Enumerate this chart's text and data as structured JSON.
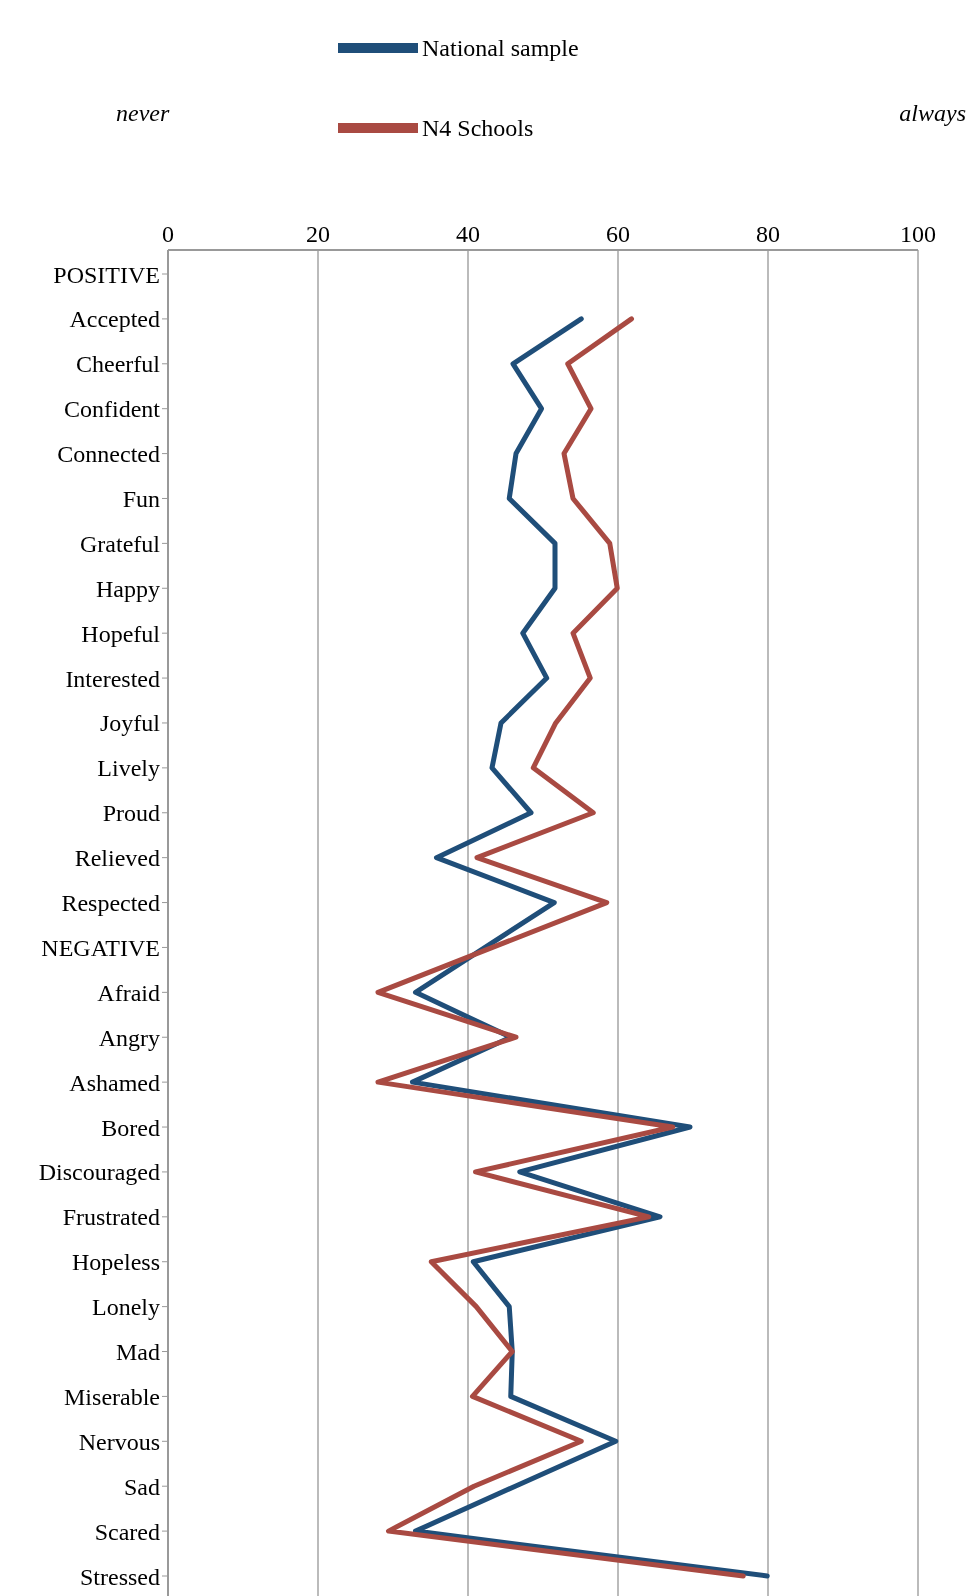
{
  "chart_data": {
    "type": "line",
    "orientation": "horizontal",
    "categories": [
      "POSITIVE",
      "Accepted",
      "Cheerful",
      "Confident",
      "Connected",
      "Fun",
      "Grateful",
      "Happy",
      "Hopeful",
      "Interested",
      "Joyful",
      "Lively",
      "Proud",
      "Relieved",
      "Respected",
      "NEGATIVE",
      "Afraid",
      "Angry",
      "Ashamed",
      "Bored",
      "Discouraged",
      "Frustrated",
      "Hopeless",
      "Lonely",
      "Mad",
      "Miserable",
      "Nervous",
      "Sad",
      "Scared",
      "Stressed"
    ],
    "series": [
      {
        "name": "National sample",
        "color": "#1f4e79",
        "values": [
          null,
          55.1,
          46.0,
          49.8,
          46.4,
          45.5,
          51.6,
          51.6,
          47.3,
          50.5,
          44.4,
          43.2,
          48.4,
          35.8,
          51.5,
          null,
          33.0,
          45.7,
          32.6,
          69.6,
          46.9,
          65.6,
          40.7,
          45.5,
          45.9,
          45.7,
          59.7,
          46.3,
          33.0,
          79.9
        ]
      },
      {
        "name": "N4 Schools",
        "color": "#a94a42",
        "values": [
          null,
          61.8,
          53.3,
          56.4,
          52.8,
          54.0,
          58.9,
          59.9,
          54.0,
          56.3,
          51.7,
          48.7,
          56.7,
          41.2,
          58.5,
          null,
          28.0,
          46.4,
          28.0,
          67.3,
          41.0,
          64.1,
          35.1,
          41.1,
          45.9,
          40.6,
          55.1,
          40.8,
          29.4,
          76.7
        ]
      }
    ],
    "xlim": [
      0,
      100
    ],
    "xticks": [
      0,
      20,
      40,
      60,
      80,
      100
    ],
    "grid": "x",
    "legend": "top",
    "marker": "none",
    "line_style": "solid",
    "annotations": [
      "never",
      "always"
    ]
  }
}
